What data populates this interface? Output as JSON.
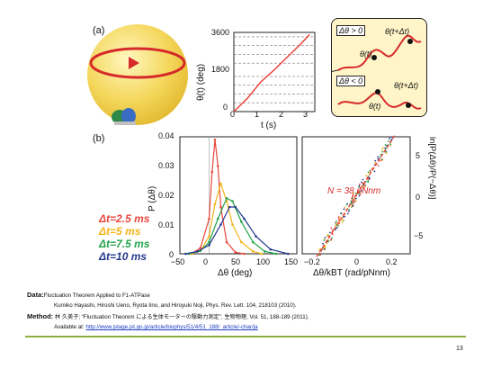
{
  "panel_a": {
    "label": "(a)",
    "time_trace": {
      "ylabel": "θ(t) (deg)",
      "xlabel": "t (s)",
      "yticks": [
        "3600",
        "1800",
        "0"
      ],
      "xticks": [
        "0",
        "1",
        "2",
        "3"
      ]
    },
    "inset": {
      "pos_label": "Δθ > 0",
      "neg_label": "Δθ < 0",
      "theta_t": "θ(t)",
      "theta_t_dt": "θ(t+Δt)"
    }
  },
  "panel_b": {
    "label": "(b)",
    "left_plot": {
      "ylabel": "P (Δθ)",
      "xlabel": "Δθ (deg)",
      "yticks": [
        "0.04",
        "0.03",
        "0.02",
        "0.01",
        "0"
      ],
      "xticks": [
        "−50",
        "0",
        "50",
        "100",
        "150"
      ]
    },
    "right_plot": {
      "ylabel": "ln[P(Δθ)/P(−Δθ)]",
      "xlabel": "Δθ/kBT (rad/pNnm)",
      "xticks": [
        "−0.2",
        "0",
        "0.2"
      ],
      "yticks": [
        "5",
        "0",
        "−5"
      ],
      "annotation": "N = 38 pNnm"
    },
    "legend": [
      {
        "label": "Δt=2.5 ms",
        "color": "#e8473c"
      },
      {
        "label": "Δt=5 ms",
        "color": "#f2b418"
      },
      {
        "label": "Δt=7.5 ms",
        "color": "#22a24a"
      },
      {
        "label": "Δt=10 ms",
        "color": "#24388e"
      }
    ]
  },
  "chart_data": [
    {
      "type": "line",
      "title": "",
      "xlabel": "t (s)",
      "ylabel": "θ(t) (deg)",
      "xlim": [
        0,
        3
      ],
      "ylim": [
        0,
        3600
      ],
      "series": [
        {
          "color": "#e8473c",
          "x": [
            0,
            0.5,
            1,
            1.5,
            2,
            2.5,
            2.8
          ],
          "y": [
            0,
            600,
            1350,
            1900,
            2500,
            3100,
            3500
          ]
        }
      ]
    },
    {
      "type": "line",
      "title": "",
      "xlabel": "Δθ (deg)",
      "ylabel": "P (Δθ)",
      "xlim": [
        -50,
        150
      ],
      "ylim": [
        0,
        0.04
      ],
      "series": [
        {
          "name": "Δt=2.5 ms",
          "x": [
            -30,
            -15,
            0,
            5,
            10,
            15,
            20,
            30,
            45,
            60
          ],
          "y": [
            0.0,
            0.002,
            0.012,
            0.028,
            0.039,
            0.03,
            0.016,
            0.004,
            0.0005,
            0.0
          ]
        },
        {
          "name": "Δt=5 ms",
          "x": [
            -30,
            -15,
            0,
            10,
            20,
            30,
            40,
            55,
            75,
            90
          ],
          "y": [
            0.0,
            0.001,
            0.006,
            0.017,
            0.024,
            0.018,
            0.01,
            0.004,
            0.0008,
            0.0
          ]
        },
        {
          "name": "Δt=7.5 ms",
          "x": [
            -35,
            -15,
            0,
            15,
            30,
            40,
            55,
            75,
            95,
            115
          ],
          "y": [
            0.0,
            0.001,
            0.004,
            0.012,
            0.019,
            0.018,
            0.011,
            0.004,
            0.0008,
            0.0
          ]
        },
        {
          "name": "Δt=10 ms",
          "x": [
            -40,
            -20,
            0,
            20,
            35,
            45,
            60,
            80,
            105,
            135
          ],
          "y": [
            0.0,
            0.0008,
            0.003,
            0.01,
            0.016,
            0.016,
            0.012,
            0.006,
            0.0015,
            0.0
          ]
        }
      ]
    },
    {
      "type": "scatter",
      "title": "",
      "xlabel": "Δθ/kBT (rad/pNnm)",
      "ylabel": "ln[P(Δθ)/P(−Δθ)]",
      "xlim": [
        -0.3,
        0.3
      ],
      "ylim": [
        -8,
        8
      ],
      "annotation": "N = 38 pNnm",
      "series": [
        {
          "name": "fit",
          "x": [
            -0.22,
            0.22
          ],
          "y": [
            -8.4,
            8.4
          ]
        }
      ]
    }
  ],
  "footer": {
    "data_label": "Data:",
    "data_title": "Fluctuation Theorem Applied to F1-ATPase",
    "data_ref": "Kumiko Hayashi, Hiroshi Ueno, Ryota Iino, and Hiroyuki Noji, Phys. Rev. Lett. 104, 218103 (2010).",
    "method_label": "Method:",
    "method_ref": "林 久美子; “Fluctuation Theorem による生体モーターの駆動力測定”, 生物物理, Vol. 51, 188-189 (2011).",
    "available_label": "Available at:",
    "available_url": "http://www.jstage.jst.go.jp/article/biophys/51/4/51_188/_article/-char/ja",
    "page_number": "13"
  },
  "colors": {
    "accent_rule": "#8fae3c",
    "trace_red": "#e8473c",
    "sphere": "#f4d65a",
    "box_bg": "#fff5c8"
  }
}
